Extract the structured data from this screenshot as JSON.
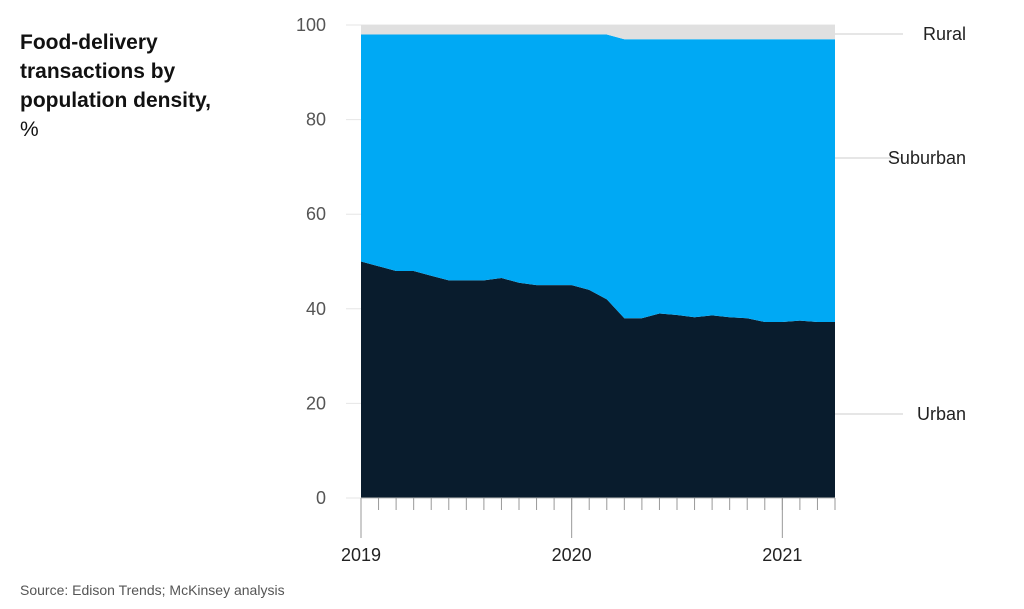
{
  "title": {
    "main": "Food-delivery transactions by population density,",
    "unit": " %"
  },
  "source": "Source: Edison Trends; McKinsey analysis",
  "colors": {
    "urban": "#091c2d",
    "suburban": "#00a9f4",
    "rural": "#e0e0e0",
    "gridline": "#e6e6e6",
    "axis": "#bbbbbb"
  },
  "chart_data": {
    "type": "area",
    "stacked": true,
    "title": "Food-delivery transactions by population density, %",
    "xlabel": "",
    "ylabel": "",
    "ylim": [
      0,
      100
    ],
    "yticks": [
      0,
      20,
      40,
      60,
      80,
      100
    ],
    "xticks": [
      {
        "label": "2019",
        "x": 2019.0
      },
      {
        "label": "2020",
        "x": 2020.0
      },
      {
        "label": "2021",
        "x": 2021.0
      }
    ],
    "xlim": [
      2019.0,
      2021.25
    ],
    "x": [
      2019.0,
      2019.083,
      2019.167,
      2019.25,
      2019.333,
      2019.417,
      2019.5,
      2019.583,
      2019.667,
      2019.75,
      2019.833,
      2019.917,
      2020.0,
      2020.083,
      2020.167,
      2020.25,
      2020.333,
      2020.417,
      2020.5,
      2020.583,
      2020.667,
      2020.75,
      2020.833,
      2020.917,
      2021.0,
      2021.083,
      2021.167,
      2021.25
    ],
    "series": [
      {
        "name": "Urban",
        "values": [
          50,
          49,
          48,
          48,
          47,
          46,
          46,
          46,
          46.5,
          45.5,
          45,
          45,
          45,
          44,
          42,
          38,
          38,
          39,
          38.7,
          38.2,
          38.6,
          38.2,
          38,
          37.2,
          37.2,
          37.5,
          37.2,
          37.2
        ]
      },
      {
        "name": "Suburban",
        "values": [
          48,
          49,
          50,
          50,
          51,
          52,
          52,
          52,
          51.5,
          52.5,
          53,
          53,
          53,
          54,
          56,
          59,
          59,
          58,
          58.3,
          58.8,
          58.4,
          58.8,
          59,
          59.8,
          59.8,
          59.5,
          59.8,
          59.8
        ]
      },
      {
        "name": "Rural",
        "values": [
          2,
          2,
          2,
          2,
          2,
          2,
          2,
          2,
          2,
          2,
          2,
          2,
          2,
          2,
          2,
          3,
          3,
          3,
          3,
          3,
          3,
          3,
          3,
          3,
          3,
          3,
          3,
          3
        ]
      }
    ],
    "legend": "direct labels on right"
  }
}
